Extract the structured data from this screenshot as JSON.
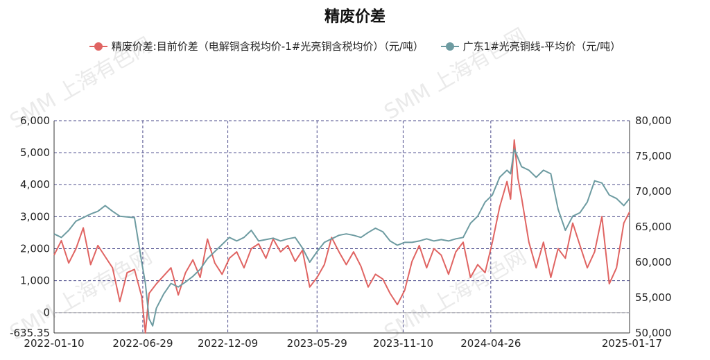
{
  "watermark": "SMM 上海有色网",
  "chart_data": {
    "type": "line",
    "title": "精废价差",
    "series": [
      {
        "name": "精废价差:目前价差（电解铜含税均价-1#光亮铜含税均价）（元/吨）",
        "color": "#e06462",
        "axis": "left",
        "points": [
          [
            "2022-01-10",
            1800
          ],
          [
            "2022-01-24",
            2250
          ],
          [
            "2022-02-07",
            1550
          ],
          [
            "2022-02-21",
            2000
          ],
          [
            "2022-03-07",
            2650
          ],
          [
            "2022-03-21",
            1500
          ],
          [
            "2022-04-04",
            2100
          ],
          [
            "2022-04-18",
            1750
          ],
          [
            "2022-05-02",
            1400
          ],
          [
            "2022-05-16",
            350
          ],
          [
            "2022-05-30",
            1250
          ],
          [
            "2022-06-13",
            1350
          ],
          [
            "2022-06-27",
            500
          ],
          [
            "2022-07-04",
            -635.35
          ],
          [
            "2022-07-11",
            600
          ],
          [
            "2022-07-25",
            900
          ],
          [
            "2022-08-08",
            1150
          ],
          [
            "2022-08-22",
            1400
          ],
          [
            "2022-09-05",
            550
          ],
          [
            "2022-09-19",
            1250
          ],
          [
            "2022-10-03",
            1650
          ],
          [
            "2022-10-17",
            1100
          ],
          [
            "2022-10-31",
            2300
          ],
          [
            "2022-11-14",
            1550
          ],
          [
            "2022-11-28",
            1200
          ],
          [
            "2022-12-12",
            1700
          ],
          [
            "2022-12-26",
            1900
          ],
          [
            "2023-01-09",
            1400
          ],
          [
            "2023-01-23",
            2000
          ],
          [
            "2023-02-06",
            2150
          ],
          [
            "2023-02-20",
            1700
          ],
          [
            "2023-03-06",
            2300
          ],
          [
            "2023-03-20",
            1900
          ],
          [
            "2023-04-03",
            2100
          ],
          [
            "2023-04-17",
            1600
          ],
          [
            "2023-05-01",
            1950
          ],
          [
            "2023-05-15",
            800
          ],
          [
            "2023-05-29",
            1100
          ],
          [
            "2023-06-12",
            1500
          ],
          [
            "2023-06-26",
            2350
          ],
          [
            "2023-07-10",
            1900
          ],
          [
            "2023-07-24",
            1500
          ],
          [
            "2023-08-07",
            1900
          ],
          [
            "2023-08-21",
            1450
          ],
          [
            "2023-09-04",
            800
          ],
          [
            "2023-09-18",
            1200
          ],
          [
            "2023-10-02",
            1050
          ],
          [
            "2023-10-16",
            600
          ],
          [
            "2023-10-30",
            250
          ],
          [
            "2023-11-13",
            700
          ],
          [
            "2023-11-27",
            1600
          ],
          [
            "2023-12-11",
            2100
          ],
          [
            "2023-12-25",
            1400
          ],
          [
            "2024-01-08",
            2000
          ],
          [
            "2024-01-22",
            1800
          ],
          [
            "2024-02-05",
            1200
          ],
          [
            "2024-02-19",
            1900
          ],
          [
            "2024-03-04",
            2200
          ],
          [
            "2024-03-18",
            1100
          ],
          [
            "2024-04-01",
            1500
          ],
          [
            "2024-04-15",
            1250
          ],
          [
            "2024-04-29",
            2200
          ],
          [
            "2024-05-13",
            3300
          ],
          [
            "2024-05-27",
            4100
          ],
          [
            "2024-06-03",
            3550
          ],
          [
            "2024-06-10",
            5400
          ],
          [
            "2024-06-17",
            4200
          ],
          [
            "2024-06-24",
            3600
          ],
          [
            "2024-07-08",
            2200
          ],
          [
            "2024-07-22",
            1400
          ],
          [
            "2024-08-05",
            2200
          ],
          [
            "2024-08-19",
            1100
          ],
          [
            "2024-09-02",
            2000
          ],
          [
            "2024-09-16",
            1700
          ],
          [
            "2024-09-30",
            2800
          ],
          [
            "2024-10-14",
            2100
          ],
          [
            "2024-10-28",
            1400
          ],
          [
            "2024-11-11",
            1900
          ],
          [
            "2024-11-25",
            3000
          ],
          [
            "2024-12-09",
            900
          ],
          [
            "2024-12-23",
            1400
          ],
          [
            "2025-01-06",
            2800
          ],
          [
            "2025-01-17",
            3150
          ]
        ]
      },
      {
        "name": "广东1#光亮铜线-平均价（元/吨）",
        "color": "#6d9ba1",
        "axis": "right",
        "points": [
          [
            "2022-01-10",
            64000
          ],
          [
            "2022-01-24",
            63500
          ],
          [
            "2022-02-07",
            64500
          ],
          [
            "2022-02-21",
            65800
          ],
          [
            "2022-03-07",
            66300
          ],
          [
            "2022-03-21",
            66800
          ],
          [
            "2022-04-04",
            67200
          ],
          [
            "2022-04-18",
            68000
          ],
          [
            "2022-05-02",
            67200
          ],
          [
            "2022-05-16",
            66500
          ],
          [
            "2022-05-30",
            66400
          ],
          [
            "2022-06-13",
            66300
          ],
          [
            "2022-06-27",
            60000
          ],
          [
            "2022-07-04",
            57000
          ],
          [
            "2022-07-11",
            52000
          ],
          [
            "2022-07-18",
            51000
          ],
          [
            "2022-07-25",
            53500
          ],
          [
            "2022-08-08",
            55500
          ],
          [
            "2022-08-22",
            57000
          ],
          [
            "2022-09-05",
            56500
          ],
          [
            "2022-09-19",
            57200
          ],
          [
            "2022-10-03",
            58000
          ],
          [
            "2022-10-17",
            59000
          ],
          [
            "2022-10-31",
            60500
          ],
          [
            "2022-11-14",
            61500
          ],
          [
            "2022-11-28",
            62500
          ],
          [
            "2022-12-12",
            63500
          ],
          [
            "2022-12-26",
            63000
          ],
          [
            "2023-01-09",
            63500
          ],
          [
            "2023-01-23",
            64500
          ],
          [
            "2023-02-06",
            63000
          ],
          [
            "2023-02-20",
            63200
          ],
          [
            "2023-03-06",
            63400
          ],
          [
            "2023-03-20",
            63000
          ],
          [
            "2023-04-03",
            63300
          ],
          [
            "2023-04-17",
            63500
          ],
          [
            "2023-05-01",
            62000
          ],
          [
            "2023-05-15",
            60000
          ],
          [
            "2023-05-29",
            61500
          ],
          [
            "2023-06-12",
            62800
          ],
          [
            "2023-06-26",
            63300
          ],
          [
            "2023-07-10",
            63800
          ],
          [
            "2023-07-24",
            64000
          ],
          [
            "2023-08-07",
            63800
          ],
          [
            "2023-08-21",
            63500
          ],
          [
            "2023-09-04",
            64200
          ],
          [
            "2023-09-18",
            64800
          ],
          [
            "2023-10-02",
            64300
          ],
          [
            "2023-10-16",
            63000
          ],
          [
            "2023-10-30",
            62400
          ],
          [
            "2023-11-13",
            62800
          ],
          [
            "2023-11-27",
            62800
          ],
          [
            "2023-12-11",
            63000
          ],
          [
            "2023-12-25",
            63300
          ],
          [
            "2024-01-08",
            63000
          ],
          [
            "2024-01-22",
            63200
          ],
          [
            "2024-02-05",
            63000
          ],
          [
            "2024-02-19",
            63300
          ],
          [
            "2024-03-04",
            63500
          ],
          [
            "2024-03-18",
            65500
          ],
          [
            "2024-04-01",
            66500
          ],
          [
            "2024-04-15",
            68500
          ],
          [
            "2024-04-29",
            69500
          ],
          [
            "2024-05-13",
            72000
          ],
          [
            "2024-05-27",
            73000
          ],
          [
            "2024-06-03",
            72500
          ],
          [
            "2024-06-10",
            76000
          ],
          [
            "2024-06-24",
            73500
          ],
          [
            "2024-07-08",
            73000
          ],
          [
            "2024-07-22",
            72000
          ],
          [
            "2024-08-05",
            73000
          ],
          [
            "2024-08-19",
            72500
          ],
          [
            "2024-09-02",
            67500
          ],
          [
            "2024-09-16",
            64500
          ],
          [
            "2024-09-30",
            66500
          ],
          [
            "2024-10-14",
            67000
          ],
          [
            "2024-10-28",
            68500
          ],
          [
            "2024-11-11",
            71500
          ],
          [
            "2024-11-25",
            71200
          ],
          [
            "2024-12-09",
            69500
          ],
          [
            "2024-12-23",
            69000
          ],
          [
            "2025-01-06",
            68000
          ],
          [
            "2025-01-17",
            69000
          ]
        ]
      }
    ],
    "x_axis": {
      "tick_labels": [
        "2022-01-10",
        "2022-06-29",
        "2022-12-09",
        "2023-05-29",
        "2023-11-10",
        "2024-04-26",
        "2025-01-17"
      ],
      "range": [
        "2022-01-10",
        "2025-01-17"
      ]
    },
    "y_left": {
      "tick_labels": [
        "6,000",
        "5,000",
        "4,000",
        "3,000",
        "2,000",
        "1,000",
        "0",
        "-635.35"
      ],
      "range": [
        -635.35,
        6000
      ]
    },
    "y_right": {
      "tick_labels": [
        "80,000",
        "75,000",
        "70,000",
        "65,000",
        "60,000",
        "55,000",
        "50,000"
      ],
      "range": [
        50000,
        80000
      ]
    },
    "grid": true,
    "legend_position": "top"
  }
}
